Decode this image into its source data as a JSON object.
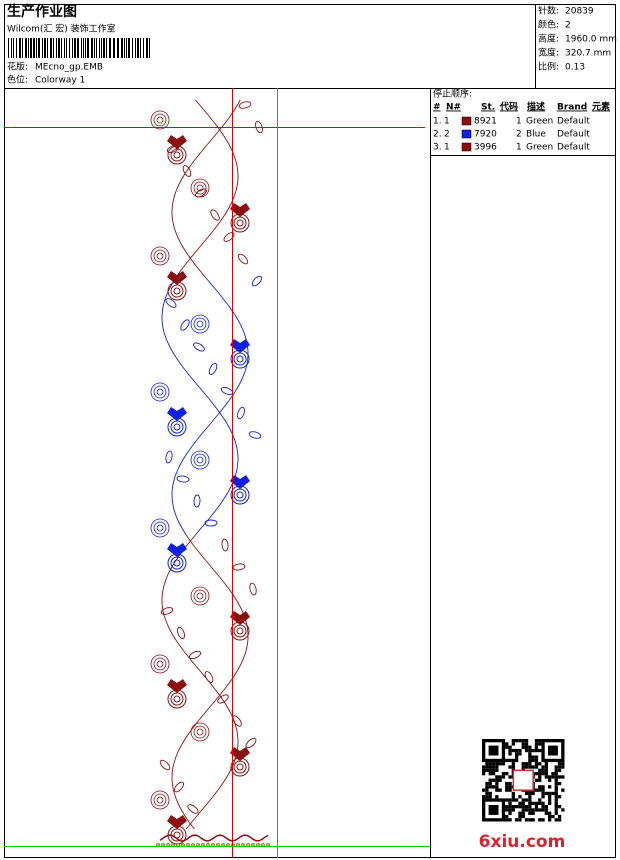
{
  "header": {
    "title": "生产作业图",
    "company": "Wilcom(汇 宏) 装饰工作室",
    "design_label": "花版:",
    "design": "MEcno_gp.EMB",
    "colorway_label": "色位:",
    "colorway": "Colorway 1"
  },
  "info": [
    {
      "label": "针数:",
      "value": "20839"
    },
    {
      "label": "颜色:",
      "value": "2"
    },
    {
      "label": "高度:",
      "value": "1960.0 mm"
    },
    {
      "label": "宽度:",
      "value": "320.7 mm"
    },
    {
      "label": "比例:",
      "value": "0.13"
    }
  ],
  "stop_sequence": {
    "title": "停止顺序:",
    "columns": [
      "#",
      "N#",
      "St.",
      "代码",
      "描述",
      "Brand",
      "元素"
    ],
    "rows": [
      {
        "index": "1.",
        "n": "1",
        "color": "#8b1010",
        "code": "8921",
        "st": "1",
        "desc": "Green",
        "brand": "Default"
      },
      {
        "index": "2.",
        "n": "2",
        "color": "#1020e0",
        "code": "7920",
        "st": "2",
        "desc": "Blue",
        "brand": "Default"
      },
      {
        "index": "3.",
        "n": "1",
        "color": "#8b1010",
        "code": "3996",
        "st": "1",
        "desc": "Green",
        "brand": "Default"
      }
    ]
  },
  "watermark": "6xiu.com"
}
